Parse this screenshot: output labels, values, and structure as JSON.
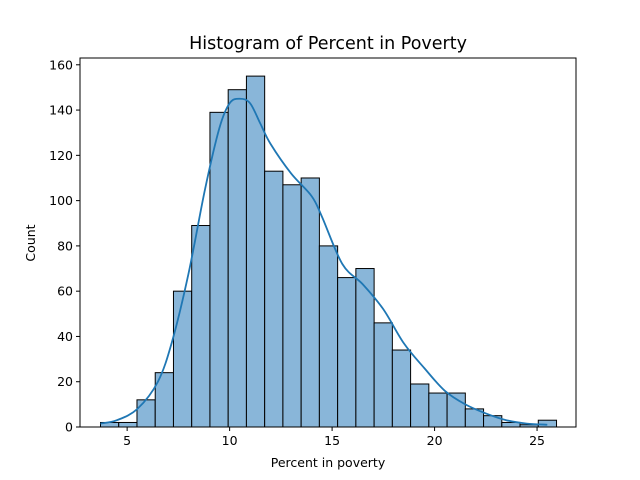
{
  "chart_data": {
    "type": "bar",
    "title": "Histogram of Percent in Poverty",
    "xlabel": "Percent in poverty",
    "ylabel": "Count",
    "xlim": [
      2.7,
      26.9
    ],
    "ylim": [
      0,
      163
    ],
    "x_ticks": [
      5,
      10,
      15,
      20,
      25
    ],
    "y_ticks": [
      0,
      20,
      40,
      60,
      80,
      100,
      120,
      140,
      160
    ],
    "grid": false,
    "legend": "none",
    "bin_edges": [
      3.7,
      4.59,
      5.48,
      6.37,
      7.26,
      8.15,
      9.04,
      9.93,
      10.82,
      11.71,
      12.6,
      13.49,
      14.38,
      15.27,
      16.16,
      17.05,
      17.94,
      18.83,
      19.72,
      20.61,
      21.5,
      22.39,
      23.28,
      24.17,
      25.06,
      25.95
    ],
    "series": [
      {
        "values": [
          2,
          2,
          12,
          24,
          60,
          89,
          139,
          149,
          155,
          113,
          107,
          110,
          80,
          66,
          70,
          46,
          34,
          19,
          15,
          15,
          8,
          5,
          2,
          1,
          3
        ]
      }
    ],
    "kde": {
      "x": [
        3.7,
        4.5,
        5.5,
        6.5,
        7.2,
        8.0,
        8.8,
        9.5,
        10.0,
        10.5,
        11.0,
        11.5,
        12.0,
        13.0,
        14.0,
        14.5,
        15.5,
        16.5,
        17.5,
        18.5,
        19.5,
        20.5,
        21.5,
        22.5,
        23.5,
        24.5,
        25.5
      ],
      "y": [
        1.5,
        3,
        8,
        20,
        38,
        68,
        105,
        132,
        143,
        145,
        143,
        134,
        125,
        112,
        102,
        93,
        72,
        63,
        52,
        37,
        26,
        16,
        10,
        6,
        3,
        1.5,
        1
      ]
    },
    "colors": {
      "bar_fill": "#89b6d9",
      "bar_edge": "#000000",
      "kde_line": "#1f77b4"
    }
  }
}
